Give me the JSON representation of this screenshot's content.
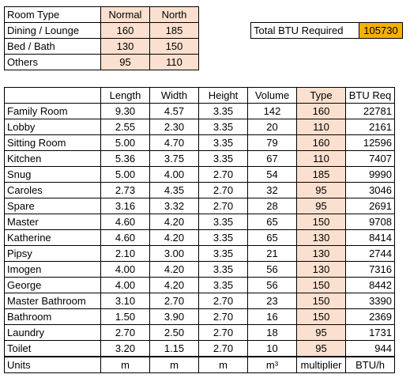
{
  "room_types": {
    "header": [
      "Room Type",
      "Normal",
      "North"
    ],
    "rows": [
      [
        "Dining / Lounge",
        "160",
        "185"
      ],
      [
        "Bed / Bath",
        "130",
        "150"
      ],
      [
        "Others",
        "95",
        "110"
      ]
    ]
  },
  "total": {
    "label": "Total BTU Required",
    "value": "105730"
  },
  "rooms_table": {
    "header": [
      "",
      "Length",
      "Width",
      "Height",
      "Volume",
      "Type",
      "BTU Req"
    ],
    "rows": [
      [
        "Family Room",
        "9.30",
        "4.57",
        "3.35",
        "142",
        "160",
        "22781"
      ],
      [
        "Lobby",
        "2.55",
        "2.30",
        "3.35",
        "20",
        "110",
        "2161"
      ],
      [
        "Sitting Room",
        "5.00",
        "4.70",
        "3.35",
        "79",
        "160",
        "12596"
      ],
      [
        "Kitchen",
        "5.36",
        "3.75",
        "3.35",
        "67",
        "110",
        "7407"
      ],
      [
        "Snug",
        "5.00",
        "4.00",
        "2.70",
        "54",
        "185",
        "9990"
      ],
      [
        "Caroles",
        "2.73",
        "4.35",
        "2.70",
        "32",
        "95",
        "3046"
      ],
      [
        "Spare",
        "3.16",
        "3.32",
        "2.70",
        "28",
        "95",
        "2691"
      ],
      [
        "Master",
        "4.60",
        "4.20",
        "3.35",
        "65",
        "150",
        "9708"
      ],
      [
        "Katherine",
        "4.60",
        "4.20",
        "3.35",
        "65",
        "130",
        "8414"
      ],
      [
        "Pipsy",
        "2.10",
        "3.00",
        "3.35",
        "21",
        "130",
        "2744"
      ],
      [
        "Imogen",
        "4.00",
        "4.20",
        "3.35",
        "56",
        "130",
        "7316"
      ],
      [
        "George",
        "4.00",
        "4.20",
        "3.35",
        "56",
        "150",
        "8442"
      ],
      [
        "Master Bathroom",
        "3.10",
        "2.70",
        "2.70",
        "23",
        "150",
        "3390"
      ],
      [
        "Bathroom",
        "1.50",
        "3.90",
        "2.70",
        "16",
        "150",
        "2369"
      ],
      [
        "Laundry",
        "2.70",
        "2.50",
        "2.70",
        "18",
        "95",
        "1731"
      ],
      [
        "Toilet",
        "3.20",
        "1.15",
        "2.70",
        "10",
        "95",
        "944"
      ]
    ],
    "units": [
      "Units",
      "m",
      "m",
      "m",
      "m³",
      "multiplier",
      "BTU/h"
    ]
  },
  "colors": {
    "peach": "#fbe0cf",
    "orange": "#f5b100"
  }
}
